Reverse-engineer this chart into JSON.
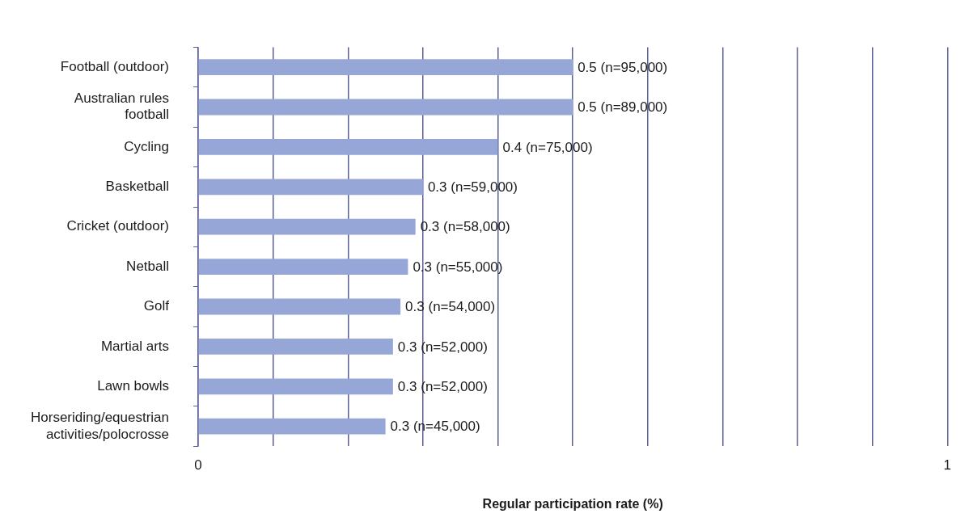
{
  "chart_data": {
    "type": "bar",
    "orientation": "horizontal",
    "xlabel": "Regular participation rate (%)",
    "categories": [
      "Football (outdoor)",
      "Australian rules football",
      "Cycling",
      "Basketball",
      "Cricket (outdoor)",
      "Netball",
      "Golf",
      "Martial arts",
      "Lawn bowls",
      "Horseriding/equestrian activities/polocrosse"
    ],
    "values": [
      0.5,
      0.5,
      0.4,
      0.3,
      0.29,
      0.28,
      0.27,
      0.26,
      0.26,
      0.25
    ],
    "value_labels": [
      "0.5 (n=95,000)",
      "0.5 (n=89,000)",
      "0.4 (n=75,000)",
      "0.3 (n=59,000)",
      "0.3 (n=58,000)",
      "0.3 (n=55,000)",
      "0.3 (n=54,000)",
      "0.3 (n=52,000)",
      "0.3 (n=52,000)",
      "0.3 (n=45,000)"
    ],
    "color": "#96a6d6",
    "xlim": [
      0,
      1
    ],
    "xticks": [
      0,
      {
        "value": 0.1,
        "label": null
      },
      {
        "value": 0.2,
        "label": null
      },
      {
        "value": 0.3,
        "label": null
      },
      {
        "value": 0.4,
        "label": null
      },
      {
        "value": 0.5,
        "label": null
      },
      {
        "value": 0.6,
        "label": null
      },
      {
        "value": 0.7,
        "label": null
      },
      {
        "value": 0.8,
        "label": null
      },
      {
        "value": 0.9,
        "label": null
      },
      1
    ],
    "grid": "x",
    "legend": false
  }
}
